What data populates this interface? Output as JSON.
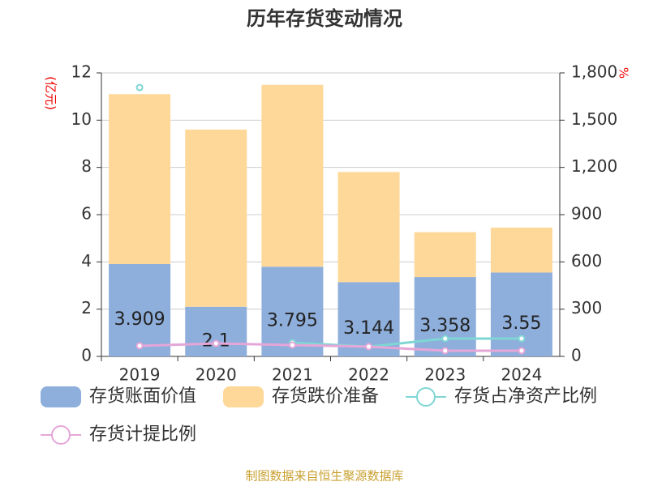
{
  "chart_data": {
    "type": "bar-line",
    "title": "历年存货变动情况",
    "y_label": "(亿元)",
    "y2_label": "%",
    "categories": [
      "2019",
      "2020",
      "2021",
      "2022",
      "2023",
      "2024"
    ],
    "ylim": [
      0,
      12
    ],
    "yticks": [
      0,
      2,
      4,
      6,
      8,
      10,
      12
    ],
    "y2lim": [
      0,
      1800
    ],
    "y2ticks": [
      0,
      300,
      600,
      900,
      {
        "value": 1200,
        "label": "1,200"
      },
      {
        "value": 1500,
        "label": "1,500"
      },
      {
        "value": 1800,
        "label": "1,800"
      }
    ],
    "grid": true,
    "series": [
      {
        "name": "存货账面价值",
        "type": "bar",
        "color": "#8eaedb",
        "values": [
          3.909,
          2.1,
          3.795,
          3.144,
          3.358,
          3.55
        ]
      },
      {
        "name": "存货跌价准备",
        "type": "bar",
        "color": "#fed898",
        "values": [
          7.19,
          7.5,
          7.7,
          4.66,
          1.9,
          1.9
        ]
      },
      {
        "name": "存货占净资产比例",
        "type": "line",
        "axis": "y2",
        "color": "#7fd6d4",
        "values": [
          1707,
          null,
          87,
          62,
          113,
          113
        ]
      },
      {
        "name": "存货计提比例",
        "type": "line",
        "axis": "y2",
        "color": "#e5a6d8",
        "values": [
          67,
          82,
          72,
          62,
          36,
          36
        ]
      }
    ],
    "source": "制图数据来自恒生聚源数据库"
  }
}
